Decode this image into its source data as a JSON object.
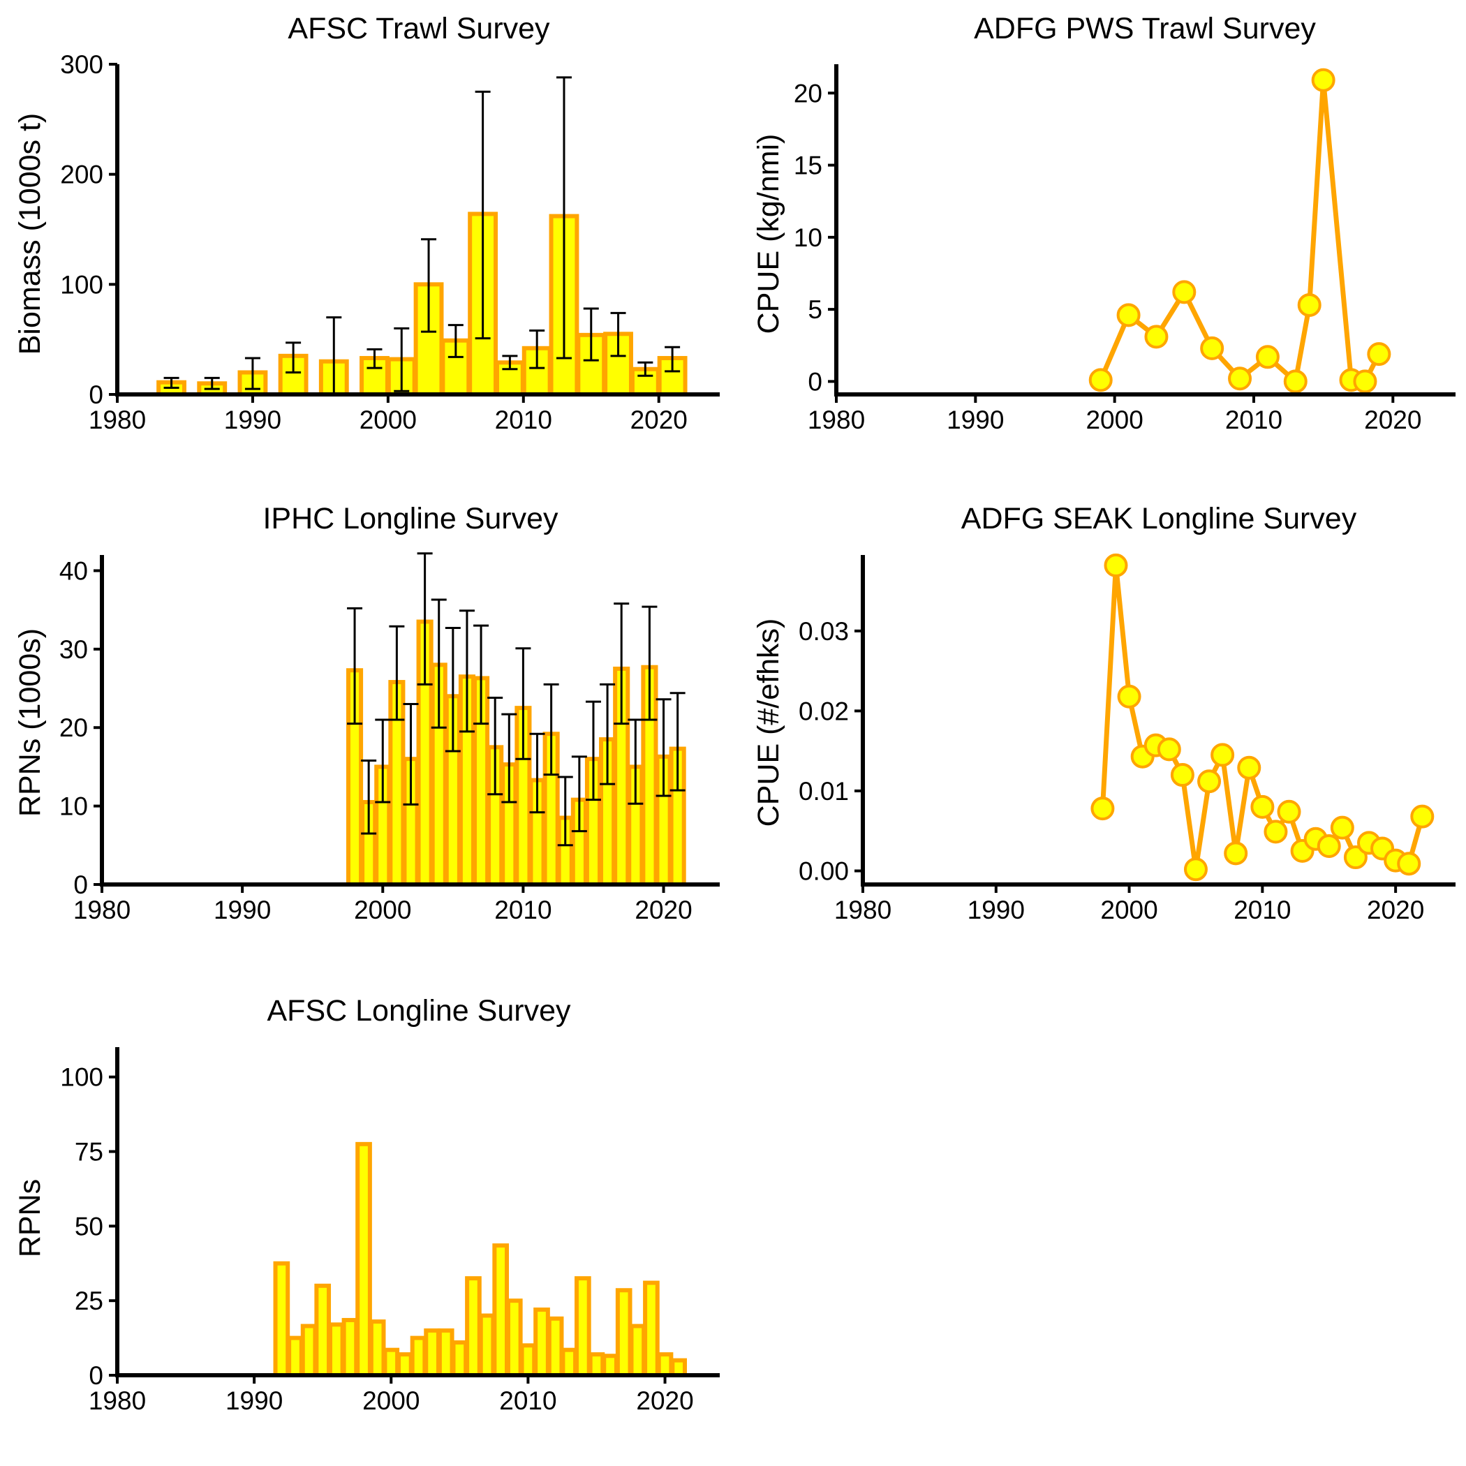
{
  "colors": {
    "fill": "#FFFF00",
    "stroke": "#FFA500",
    "error_bar": "#000000",
    "axis": "#000000"
  },
  "chart_data": [
    {
      "type": "bar",
      "title": "AFSC Trawl Survey",
      "ylabel": "Biomass (1000s t)",
      "xlabel": "",
      "xlim": [
        1980,
        2024.5
      ],
      "ylim": [
        0,
        300
      ],
      "xticks": [
        1980,
        1990,
        2000,
        2010,
        2020
      ],
      "yticks": [
        0,
        100,
        200,
        300
      ],
      "error_bars": true,
      "x": [
        1984,
        1987,
        1990,
        1993,
        1996,
        1999,
        2001,
        2003,
        2005,
        2007,
        2009,
        2011,
        2013,
        2015,
        2017,
        2019,
        2021
      ],
      "values": [
        11,
        10,
        20,
        35,
        30,
        33,
        32,
        100,
        49,
        164,
        29,
        42,
        162,
        54,
        55,
        23,
        33
      ],
      "lower": [
        6,
        5,
        5,
        20,
        0,
        24,
        3,
        57,
        34,
        51,
        23,
        24,
        33,
        31,
        35,
        17,
        21
      ],
      "upper": [
        15,
        15,
        33,
        47,
        70,
        41,
        60,
        141,
        63,
        275,
        35,
        58,
        288,
        78,
        74,
        29,
        43
      ],
      "grid": false,
      "legend": "none"
    },
    {
      "type": "line",
      "title": "ADFG PWS Trawl Survey",
      "ylabel": "CPUE (kg/nmi)",
      "xlabel": "",
      "xlim": [
        1980,
        2024.5
      ],
      "ylim": [
        -0.9,
        22
      ],
      "xticks": [
        1980,
        1990,
        2000,
        2010,
        2020
      ],
      "yticks": [
        0,
        5,
        10,
        15,
        20
      ],
      "x": [
        1999,
        2001,
        2003,
        2005,
        2007,
        2009,
        2011,
        2013,
        2014,
        2015,
        2017,
        2018,
        2019
      ],
      "values": [
        0.1,
        4.6,
        3.1,
        6.2,
        2.3,
        0.2,
        1.7,
        0.0,
        5.3,
        20.9,
        0.1,
        0.0,
        1.9
      ],
      "grid": false,
      "legend": "none"
    },
    {
      "type": "bar",
      "title": "IPHC Longline Survey",
      "ylabel": "RPNs (1000s)",
      "xlabel": "",
      "xlim": [
        1980,
        2024
      ],
      "ylim": [
        0,
        42
      ],
      "xticks": [
        1980,
        1990,
        2000,
        2010,
        2020
      ],
      "yticks": [
        0,
        10,
        20,
        30,
        40
      ],
      "error_bars": true,
      "x": [
        1998,
        1999,
        2000,
        2001,
        2002,
        2003,
        2004,
        2005,
        2006,
        2007,
        2008,
        2009,
        2010,
        2011,
        2012,
        2013,
        2014,
        2015,
        2016,
        2017,
        2018,
        2019,
        2020,
        2021
      ],
      "values": [
        27.3,
        10.5,
        15.0,
        25.8,
        16.0,
        33.5,
        28.0,
        24.0,
        26.5,
        26.3,
        17.5,
        15.3,
        22.5,
        13.3,
        19.2,
        8.5,
        10.8,
        16.0,
        18.5,
        27.5,
        15.0,
        27.7,
        16.3,
        17.3
      ],
      "lower": [
        20.5,
        6.5,
        10.5,
        21.0,
        10.2,
        25.5,
        20.0,
        17.0,
        19.5,
        20.5,
        11.5,
        10.5,
        16.0,
        9.2,
        14.0,
        5.0,
        6.8,
        10.8,
        12.8,
        20.5,
        10.3,
        21.0,
        11.3,
        12.0
      ],
      "upper": [
        35.2,
        15.8,
        21.0,
        32.9,
        23.0,
        42.2,
        36.3,
        32.7,
        34.9,
        33.0,
        23.8,
        21.7,
        30.1,
        19.2,
        25.5,
        13.7,
        16.3,
        23.3,
        25.5,
        35.8,
        21.0,
        35.4,
        23.6,
        24.4
      ],
      "grid": false,
      "legend": "none"
    },
    {
      "type": "line",
      "title": "ADFG SEAK Longline Survey",
      "ylabel": "CPUE (#/efhks)",
      "xlabel": "",
      "xlim": [
        1980,
        2024.5
      ],
      "ylim": [
        -0.0017,
        0.0395
      ],
      "xticks": [
        1980,
        1990,
        2000,
        2010,
        2020
      ],
      "yticks": [
        0.0,
        0.01,
        0.02,
        0.03
      ],
      "ytick_labels": [
        "0.00",
        "0.01",
        "0.02",
        "0.03"
      ],
      "x": [
        1998,
        1999,
        2000,
        2001,
        2002,
        2003,
        2004,
        2005,
        2006,
        2007,
        2008,
        2009,
        2010,
        2011,
        2012,
        2013,
        2014,
        2015,
        2016,
        2017,
        2018,
        2019,
        2020,
        2021,
        2022
      ],
      "values": [
        0.0078,
        0.0382,
        0.0218,
        0.0143,
        0.0157,
        0.0152,
        0.012,
        0.0002,
        0.0112,
        0.0145,
        0.0022,
        0.0129,
        0.008,
        0.0049,
        0.0074,
        0.0025,
        0.004,
        0.0031,
        0.0054,
        0.0017,
        0.0035,
        0.0028,
        0.0013,
        0.0009,
        0.0068
      ],
      "grid": false,
      "legend": "none"
    },
    {
      "type": "bar",
      "title": "AFSC Longline Survey",
      "ylabel": "RPNs",
      "xlabel": "",
      "xlim": [
        1980,
        2024
      ],
      "ylim": [
        0,
        110
      ],
      "xticks": [
        1980,
        1990,
        2000,
        2010,
        2020
      ],
      "yticks": [
        0,
        25,
        50,
        75,
        100
      ],
      "error_bars": false,
      "x": [
        1992,
        1993,
        1994,
        1995,
        1996,
        1997,
        1998,
        1999,
        2000,
        2001,
        2002,
        2003,
        2004,
        2005,
        2006,
        2007,
        2008,
        2009,
        2010,
        2011,
        2012,
        2013,
        2014,
        2015,
        2016,
        2017,
        2018,
        2019,
        2020,
        2021
      ],
      "values": [
        37.5,
        12.5,
        16.5,
        30.0,
        17.0,
        18.5,
        77.5,
        18.0,
        8.5,
        7.0,
        12.5,
        15.0,
        15.0,
        11.0,
        32.5,
        20.0,
        43.5,
        25.0,
        10.0,
        22.0,
        19.0,
        8.5,
        32.5,
        7.0,
        6.5,
        28.5,
        16.5,
        31.0,
        7.0,
        5.0
      ],
      "grid": false,
      "legend": "none"
    }
  ]
}
